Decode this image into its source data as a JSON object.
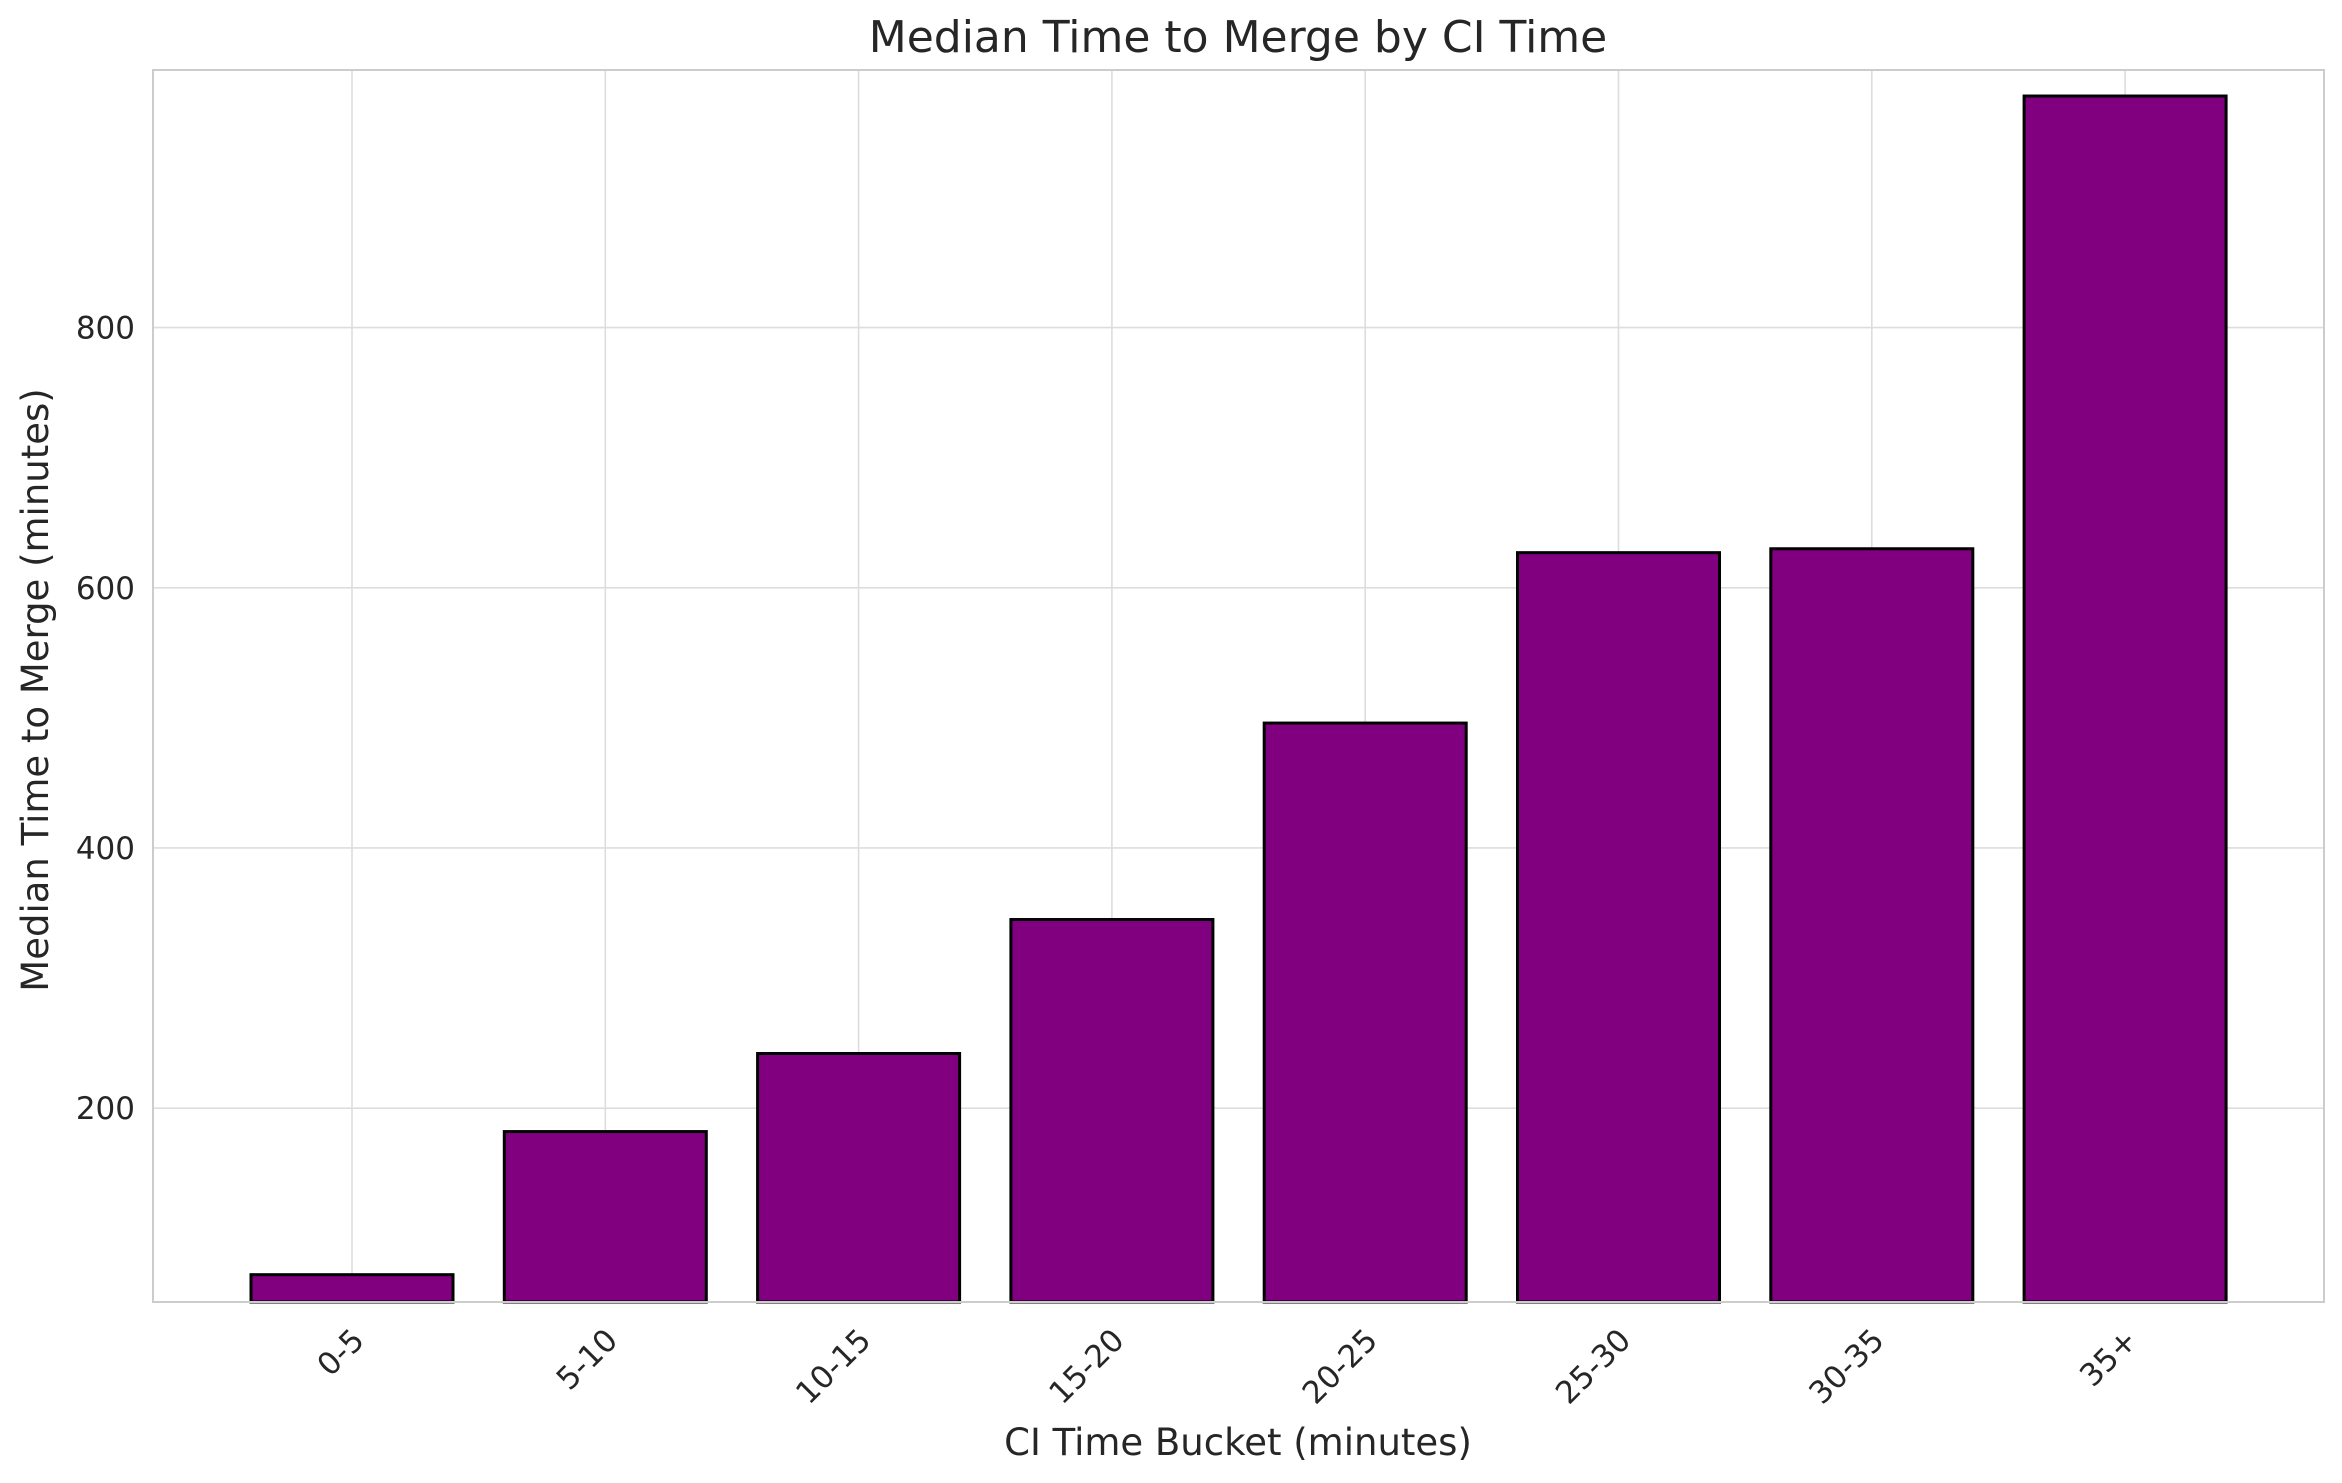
{
  "chart_data": {
    "type": "bar",
    "title": "Median Time to Merge by CI Time",
    "xlabel": "CI Time Bucket (minutes)",
    "ylabel": "Median Time to Merge (minutes)",
    "categories": [
      "0-5",
      "5-10",
      "10-15",
      "15-20",
      "20-25",
      "25-30",
      "30-35",
      "35+"
    ],
    "values": [
      72,
      182,
      242,
      345,
      496,
      627,
      630,
      978
    ],
    "yticks": [
      200,
      400,
      600,
      800
    ],
    "ylim": [
      51,
      998
    ],
    "grid": true,
    "legend": "none",
    "colors": {
      "bar": "#800080",
      "bar_edge": "#000000",
      "grid": "#dddddd",
      "text": "#262626"
    }
  }
}
